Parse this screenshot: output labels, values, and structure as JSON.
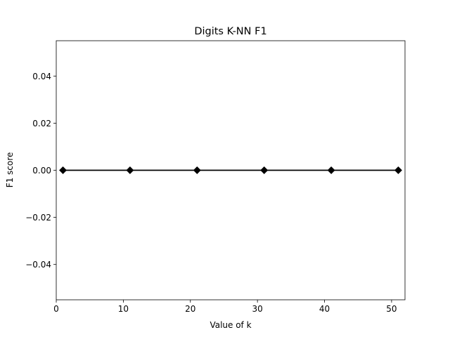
{
  "chart_data": {
    "type": "line",
    "title": "Digits K-NN F1",
    "xlabel": "Value of k",
    "ylabel": "F1 score",
    "x": [
      1,
      11,
      21,
      31,
      41,
      51
    ],
    "series": [
      {
        "values": [
          0.0,
          0.0,
          0.0,
          0.0,
          0.0,
          0.0
        ],
        "color": "#000000",
        "marker": "diamond"
      }
    ],
    "xlim": [
      0,
      52
    ],
    "ylim": [
      -0.055,
      0.055
    ],
    "xticks": [
      0,
      10,
      20,
      30,
      40,
      50
    ],
    "xtick_labels": [
      "0",
      "10",
      "20",
      "30",
      "40",
      "50"
    ],
    "yticks": [
      -0.04,
      -0.02,
      0.0,
      0.02,
      0.04
    ],
    "ytick_labels": [
      "−0.04",
      "−0.02",
      "0.00",
      "0.02",
      "0.04"
    ],
    "grid": false,
    "legend": "none"
  }
}
